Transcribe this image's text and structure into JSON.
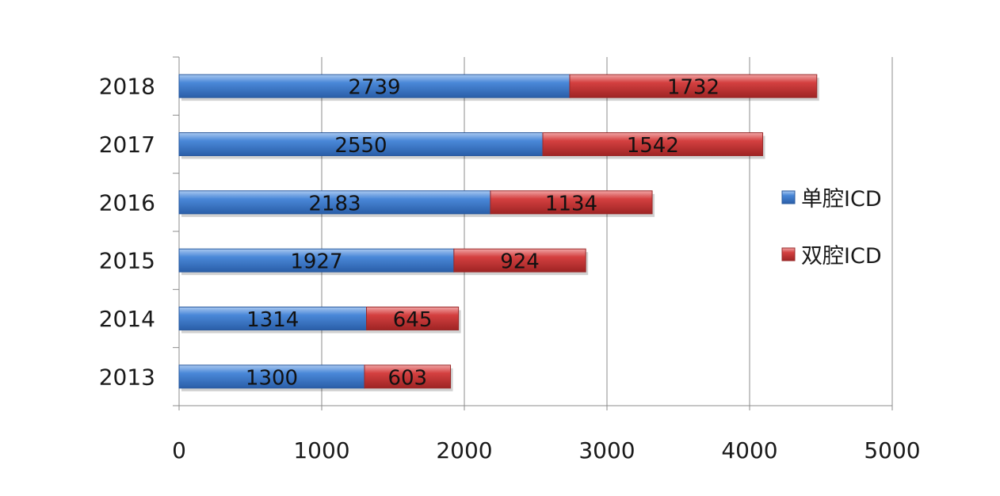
{
  "chart_data": {
    "type": "bar",
    "orientation": "horizontal",
    "stacked": true,
    "title": "",
    "xlabel": "",
    "ylabel": "",
    "categories": [
      "2013",
      "2014",
      "2015",
      "2016",
      "2017",
      "2018"
    ],
    "series": [
      {
        "name": "单腔ICD",
        "values": [
          1300,
          1314,
          1927,
          2183,
          2550,
          2739
        ],
        "color": "#3f7fd1"
      },
      {
        "name": "双腔ICD",
        "values": [
          603,
          645,
          924,
          1134,
          1542,
          1732
        ],
        "color": "#d23b3b"
      }
    ],
    "xlim": [
      0,
      5000
    ],
    "xticks": [
      0,
      1000,
      2000,
      3000,
      4000,
      5000
    ],
    "grid": "vertical",
    "data_labels": true,
    "legend_position": "right"
  }
}
